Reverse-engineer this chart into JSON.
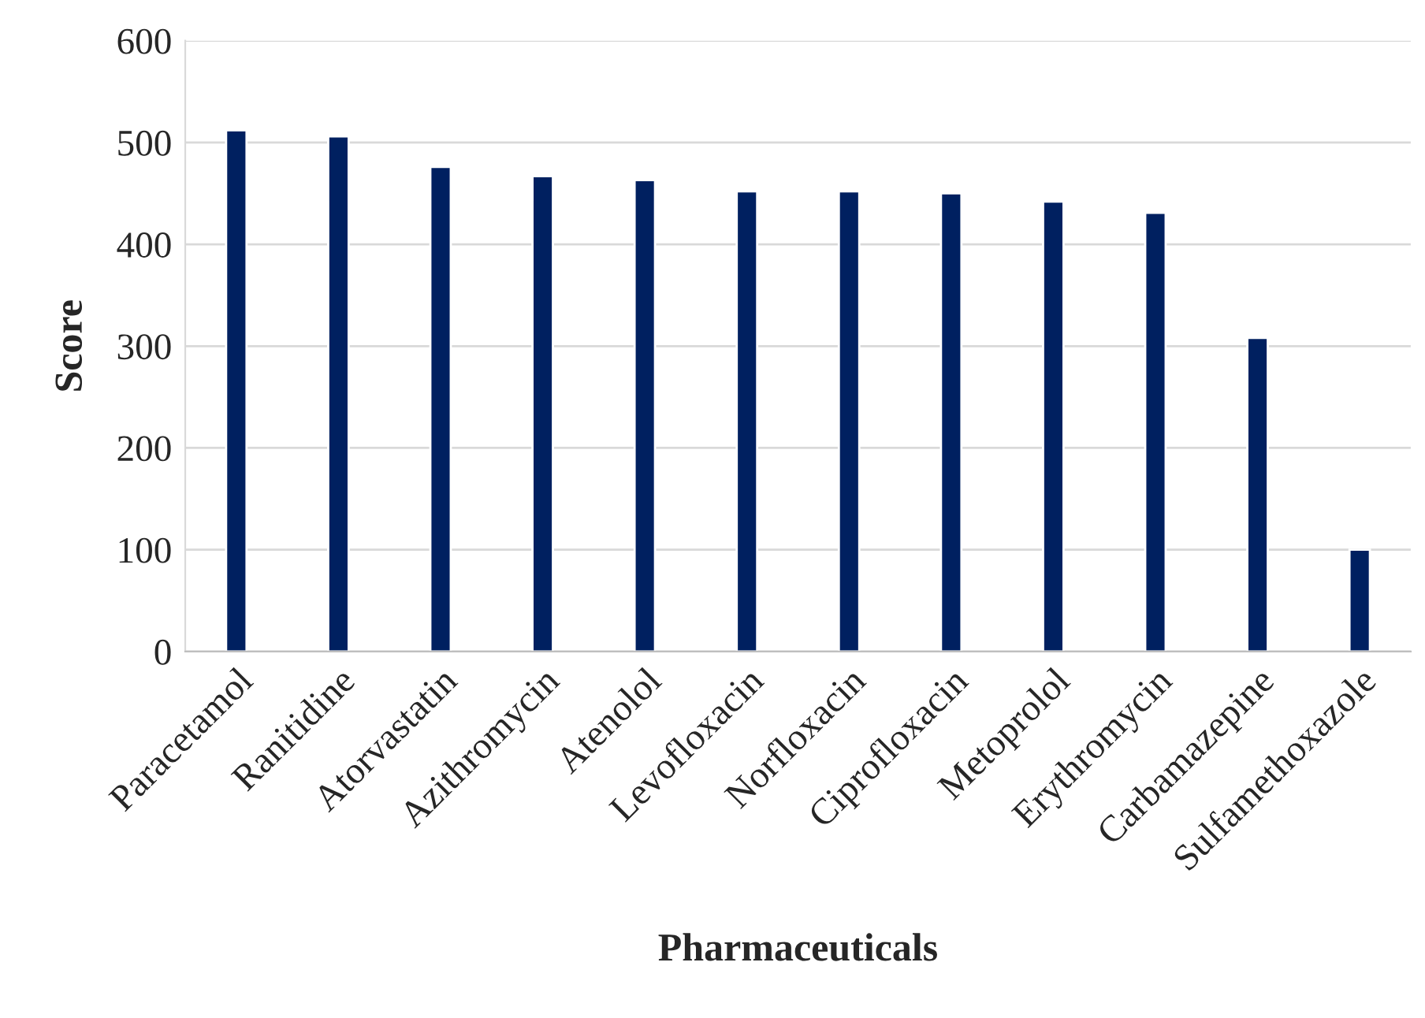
{
  "chart_data": {
    "type": "bar",
    "xlabel": "Pharmaceuticals",
    "ylabel": "Score",
    "categories": [
      "Paracetamol",
      "Ranitidine",
      "Atorvastatin",
      "Azithromycin",
      "Atenolol",
      "Levofloxacin",
      "Norfloxacin",
      "Ciprofloxacin",
      "Metoprolol",
      "Erythromycin",
      "Carbamazepine",
      "Sulfamethoxazole"
    ],
    "values": [
      512,
      506,
      476,
      467,
      463,
      452,
      452,
      450,
      442,
      431,
      308,
      100
    ],
    "color": "#002060",
    "ylim": [
      0,
      600
    ],
    "yticks": [
      0,
      100,
      200,
      300,
      400,
      500,
      600
    ],
    "grid": "y"
  }
}
